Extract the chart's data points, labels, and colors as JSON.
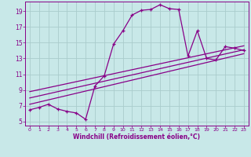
{
  "xlabel": "Windchill (Refroidissement éolien,°C)",
  "bg_color": "#c8e8e8",
  "line_color": "#880088",
  "grid_color": "#aacccc",
  "xticks": [
    0,
    1,
    2,
    3,
    4,
    5,
    6,
    7,
    8,
    9,
    10,
    11,
    12,
    13,
    14,
    15,
    16,
    17,
    18,
    19,
    20,
    21,
    22,
    23
  ],
  "yticks": [
    5,
    7,
    9,
    11,
    13,
    15,
    17,
    19
  ],
  "xlim": [
    -0.5,
    23.5
  ],
  "ylim": [
    4.5,
    20.2
  ],
  "curve_x": [
    0,
    1,
    2,
    3,
    4,
    5,
    6,
    7,
    8,
    9,
    10,
    11,
    12,
    13,
    14,
    15,
    16,
    17,
    18,
    19,
    20,
    21,
    22,
    23
  ],
  "curve_y": [
    6.5,
    6.8,
    7.2,
    6.6,
    6.3,
    6.1,
    5.3,
    9.5,
    10.8,
    14.8,
    16.5,
    18.5,
    19.1,
    19.2,
    19.8,
    19.3,
    19.2,
    13.3,
    16.5,
    13.0,
    12.8,
    14.5,
    14.3,
    14.0
  ],
  "line1_x": [
    0,
    23
  ],
  "line1_y": [
    7.2,
    13.6
  ],
  "line2_x": [
    0,
    23
  ],
  "line2_y": [
    8.0,
    14.1
  ],
  "line3_x": [
    0,
    23
  ],
  "line3_y": [
    8.8,
    14.6
  ],
  "tick_fontsize_x": 4.5,
  "tick_fontsize_y": 5.5,
  "xlabel_fontsize": 5.5
}
